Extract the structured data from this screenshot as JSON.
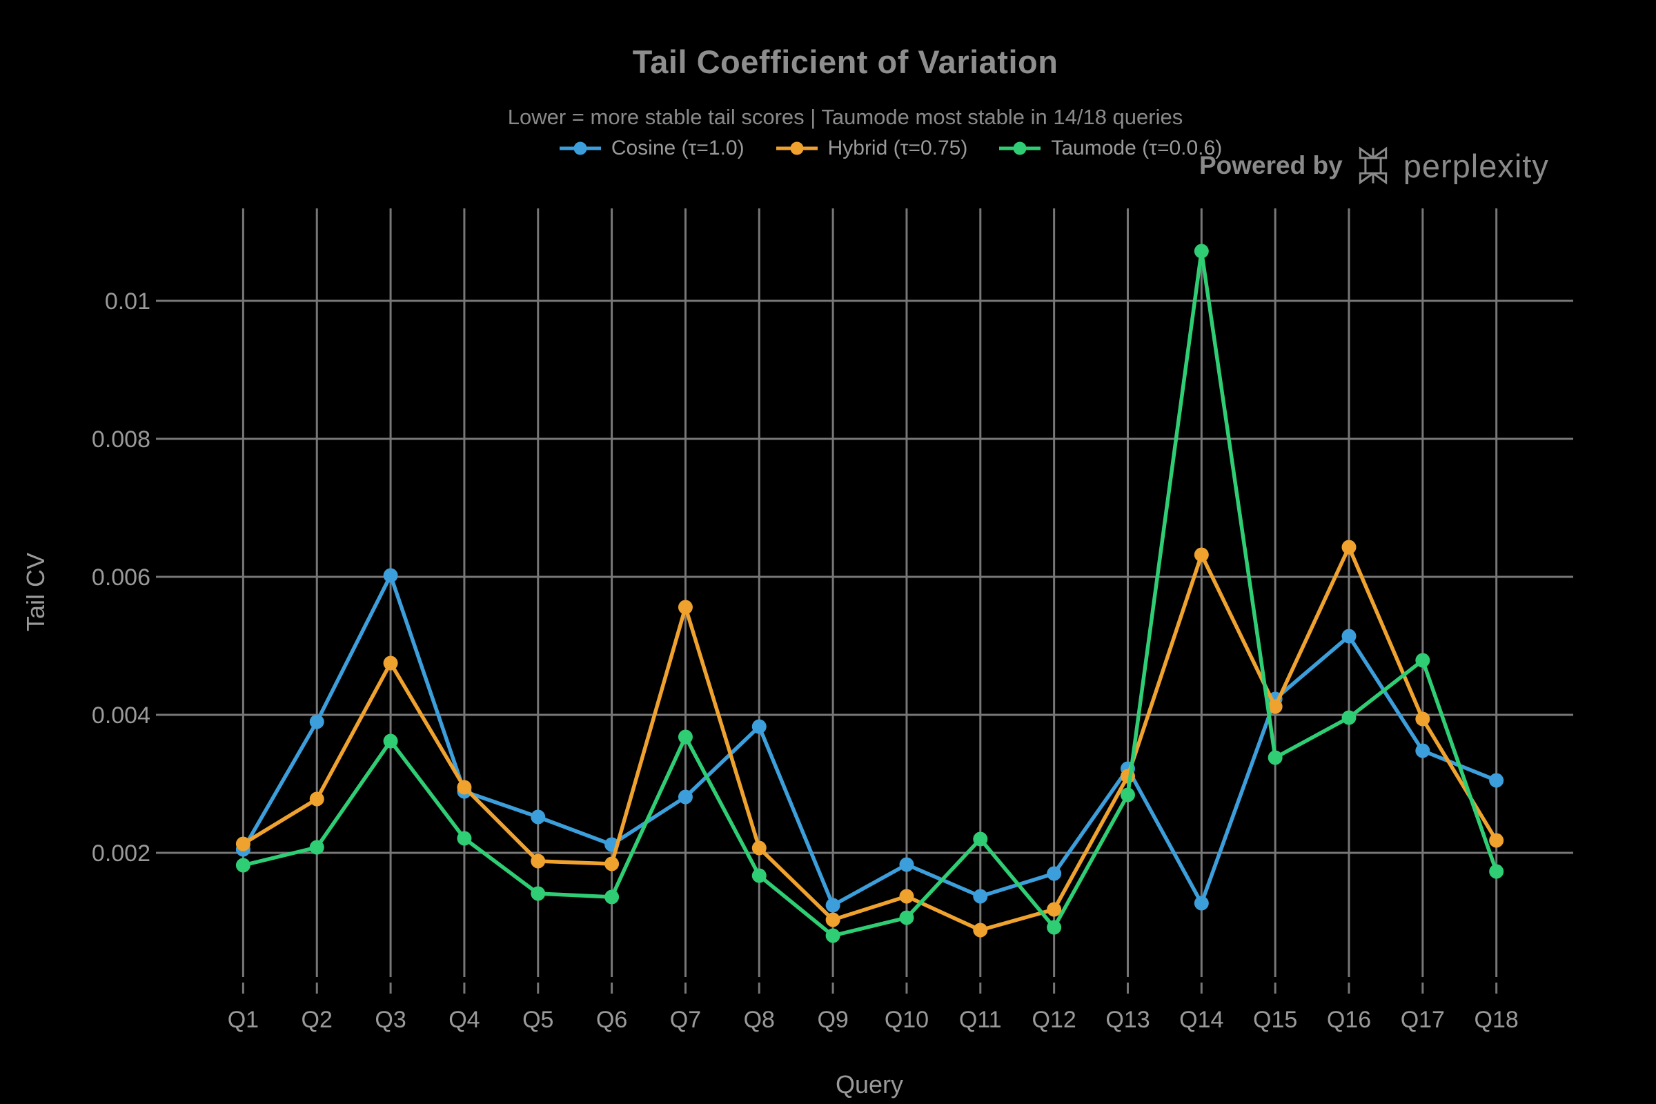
{
  "watermark": {
    "powered_by": "Powered by",
    "brand": "perplexity",
    "logo_icon": "perplexity-asterisk-icon"
  },
  "colors": {
    "background": "#000000",
    "grid": "#777777",
    "tick_text": "#9A9A9A",
    "title_text": "#8E8E8E",
    "watermark_text": "#8A8A8A",
    "cosine": "#3C9FDB",
    "hybrid": "#F0A22E",
    "taumode": "#2FCE75"
  },
  "chart_data": {
    "type": "line",
    "title": "Tail Coefficient of Variation",
    "subtitle": "Lower = more stable tail scores | Taumode most stable in 14/18 queries",
    "xlabel": "Query",
    "ylabel": "Tail CV",
    "grid": true,
    "legend_position": "top-center",
    "marker_style": "lines+markers",
    "categories": [
      "Q1",
      "Q2",
      "Q3",
      "Q4",
      "Q5",
      "Q6",
      "Q7",
      "Q8",
      "Q9",
      "Q10",
      "Q11",
      "Q12",
      "Q13",
      "Q14",
      "Q15",
      "Q16",
      "Q17",
      "Q18"
    ],
    "yticks": [
      0.002,
      0.004,
      0.006,
      0.008,
      0.01
    ],
    "ytick_labels": [
      "0.002",
      "0.004",
      "0.006",
      "0.008",
      "0.01"
    ],
    "ylim": [
      0.0002,
      0.0113
    ],
    "series": [
      {
        "name": "Cosine (τ=1.0)",
        "key": "cosine",
        "values": [
          0.00205,
          0.0039,
          0.00602,
          0.00289,
          0.00252,
          0.00212,
          0.00281,
          0.00383,
          0.00124,
          0.00183,
          0.00137,
          0.0017,
          0.00322,
          0.00127,
          0.00423,
          0.00514,
          0.00348,
          0.00305
        ]
      },
      {
        "name": "Hybrid (τ=0.75)",
        "key": "hybrid",
        "values": [
          0.00213,
          0.00278,
          0.00475,
          0.00295,
          0.00188,
          0.00184,
          0.00556,
          0.00207,
          0.00103,
          0.00137,
          0.00088,
          0.00118,
          0.00311,
          0.00632,
          0.00412,
          0.00643,
          0.00394,
          0.00218
        ]
      },
      {
        "name": "Taumode (τ=0.0.6)",
        "key": "taumode",
        "values": [
          0.00182,
          0.00208,
          0.00362,
          0.00221,
          0.00141,
          0.00136,
          0.00368,
          0.00167,
          0.0008,
          0.00106,
          0.0022,
          0.00092,
          0.00284,
          0.01072,
          0.00338,
          0.00396,
          0.00479,
          0.00173
        ]
      }
    ]
  }
}
